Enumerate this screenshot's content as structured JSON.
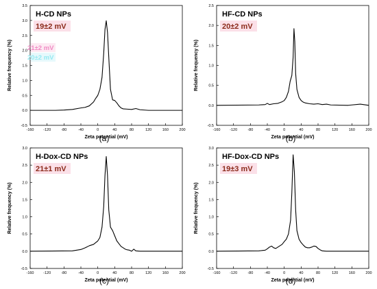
{
  "chart_data": [
    {
      "id": "a",
      "type": "line",
      "caption": "(a)",
      "title": "H-CD NPs",
      "zeta_label": "19±2 mV",
      "ghost_labels": [
        "21±2 mV",
        "20±2 mV"
      ],
      "xlabel": "Zeta potential (mV)",
      "ylabel": "Relative frequency (%)",
      "xlim": [
        -160,
        200
      ],
      "ylim": [
        -0.5,
        3.5
      ],
      "xticks": [
        -160,
        -120,
        -80,
        -40,
        0,
        40,
        80,
        120,
        160,
        200
      ],
      "yticks": [
        -0.5,
        0.0,
        0.5,
        1.0,
        1.5,
        2.0,
        2.5,
        3.0,
        3.5
      ],
      "ytick_labels": [
        "-0.5",
        "0.0",
        "0.5",
        "1.0",
        "1.5",
        "2.0",
        "2.5",
        "3.0",
        "3.5"
      ],
      "grid": false,
      "x": [
        -160,
        -100,
        -80,
        -60,
        -40,
        -30,
        -20,
        -10,
        -5,
        0,
        5,
        10,
        14,
        17,
        20,
        23,
        27,
        30,
        35,
        40,
        45,
        50,
        55,
        60,
        70,
        80,
        90,
        100,
        120,
        200
      ],
      "y": [
        0.0,
        0.0,
        0.01,
        0.03,
        0.08,
        0.1,
        0.15,
        0.28,
        0.4,
        0.5,
        0.7,
        1.1,
        1.9,
        2.7,
        2.99,
        2.6,
        1.5,
        0.7,
        0.35,
        0.33,
        0.25,
        0.15,
        0.08,
        0.05,
        0.04,
        0.03,
        0.06,
        0.02,
        0.0,
        0.0
      ]
    },
    {
      "id": "b",
      "type": "line",
      "caption": "(b)",
      "title": "HF-CD NPs",
      "zeta_label": "20±2 mV",
      "xlabel": "Zeta potential (mV)",
      "ylabel": "Relative frequency (%)",
      "xlim": [
        -160,
        200
      ],
      "ylim": [
        -0.5,
        2.5
      ],
      "xticks": [
        -160,
        -120,
        -80,
        -40,
        0,
        40,
        80,
        120,
        160,
        200
      ],
      "yticks": [
        -0.5,
        0.0,
        0.5,
        1.0,
        1.5,
        2.0,
        2.5
      ],
      "ytick_labels": [
        "-0.5",
        "0.0",
        "0.5",
        "1.0",
        "1.5",
        "2.0",
        "2.5"
      ],
      "grid": false,
      "x": [
        -160,
        -60,
        -45,
        -40,
        -35,
        -25,
        -15,
        -5,
        0,
        5,
        10,
        14,
        18,
        21,
        23,
        25,
        27,
        30,
        35,
        40,
        45,
        50,
        60,
        70,
        80,
        90,
        100,
        110,
        150,
        180,
        200
      ],
      "y": [
        0.0,
        0.01,
        0.02,
        0.05,
        0.02,
        0.04,
        0.05,
        0.09,
        0.12,
        0.2,
        0.35,
        0.6,
        0.75,
        1.2,
        1.92,
        1.6,
        0.8,
        0.4,
        0.2,
        0.12,
        0.08,
        0.06,
        0.04,
        0.03,
        0.04,
        0.02,
        0.03,
        0.01,
        0.0,
        0.03,
        0.0
      ]
    },
    {
      "id": "c",
      "type": "line",
      "caption": "(c)",
      "title": "H-Dox-CD NPs",
      "zeta_label": "21±1 mV",
      "xlabel": "Zeta potential (mV)",
      "ylabel": "Relative frequency (%)",
      "xlim": [
        -160,
        200
      ],
      "ylim": [
        -0.5,
        3.0
      ],
      "xticks": [
        -160,
        -120,
        -80,
        -40,
        0,
        40,
        80,
        120,
        160,
        200
      ],
      "yticks": [
        -0.5,
        0.0,
        0.5,
        1.0,
        1.5,
        2.0,
        2.5,
        3.0
      ],
      "ytick_labels": [
        "-0.5",
        "0.0",
        "0.5",
        "1.0",
        "1.5",
        "2.0",
        "2.5",
        "3.0"
      ],
      "grid": false,
      "x": [
        -160,
        -60,
        -40,
        -30,
        -20,
        -10,
        -5,
        0,
        5,
        10,
        14,
        17,
        20,
        23,
        26,
        30,
        35,
        40,
        45,
        50,
        55,
        60,
        65,
        70,
        75,
        80,
        85,
        90,
        100,
        200
      ],
      "y": [
        0.0,
        0.01,
        0.05,
        0.1,
        0.16,
        0.2,
        0.25,
        0.3,
        0.4,
        0.7,
        1.3,
        2.2,
        2.75,
        2.2,
        1.2,
        0.7,
        0.6,
        0.45,
        0.3,
        0.22,
        0.14,
        0.1,
        0.06,
        0.04,
        0.03,
        0.0,
        0.06,
        0.01,
        0.0,
        0.0
      ]
    },
    {
      "id": "d",
      "type": "line",
      "caption": "(d)",
      "title": "HF-Dox-CD NPs",
      "zeta_label": "19±3 mV",
      "xlabel": "Zeta potential (mV)",
      "ylabel": "Relative frequency (%)",
      "xlim": [
        -160,
        200
      ],
      "ylim": [
        -0.5,
        3.0
      ],
      "xticks": [
        -160,
        -120,
        -80,
        -40,
        0,
        40,
        80,
        120,
        160,
        200
      ],
      "yticks": [
        -0.5,
        0.0,
        0.5,
        1.0,
        1.5,
        2.0,
        2.5,
        3.0
      ],
      "ytick_labels": [
        "-0.5",
        "0.0",
        "0.5",
        "1.0",
        "1.5",
        "2.0",
        "2.5",
        "3.0"
      ],
      "grid": false,
      "x": [
        -160,
        -60,
        -45,
        -40,
        -35,
        -30,
        -25,
        -20,
        -15,
        -10,
        -5,
        0,
        5,
        10,
        15,
        18,
        21,
        24,
        27,
        30,
        35,
        40,
        45,
        50,
        55,
        60,
        65,
        70,
        75,
        80,
        85,
        90,
        100,
        200
      ],
      "y": [
        0.0,
        0.01,
        0.03,
        0.07,
        0.12,
        0.15,
        0.1,
        0.08,
        0.12,
        0.16,
        0.2,
        0.28,
        0.35,
        0.5,
        0.9,
        1.7,
        2.8,
        2.3,
        1.2,
        0.6,
        0.35,
        0.25,
        0.18,
        0.12,
        0.1,
        0.1,
        0.12,
        0.15,
        0.14,
        0.08,
        0.04,
        0.01,
        0.0,
        0.0
      ]
    }
  ]
}
